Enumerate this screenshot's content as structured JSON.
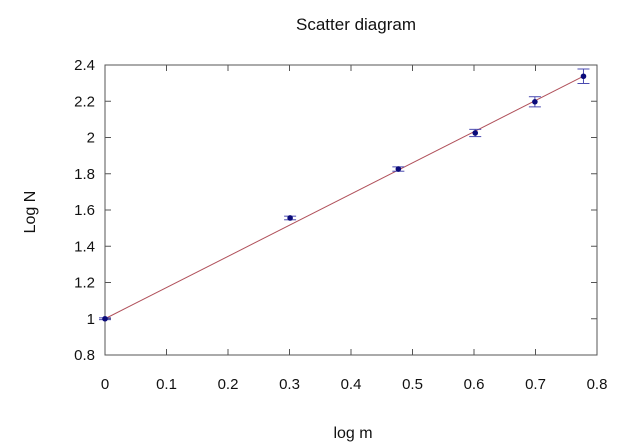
{
  "chart_data": {
    "type": "scatter",
    "title": "Scatter diagram",
    "xlabel": "log m",
    "ylabel": "Log N",
    "xlim": [
      0,
      0.8
    ],
    "ylim": [
      0.8,
      2.4
    ],
    "xticks": [
      0,
      0.1,
      0.2,
      0.3,
      0.4,
      0.5,
      0.6,
      0.7,
      0.8
    ],
    "yticks": [
      0.8,
      1,
      1.2,
      1.4,
      1.6,
      1.8,
      2,
      2.2,
      2.4
    ],
    "xtick_labels": [
      "0",
      "0.1",
      "0.2",
      "0.3",
      "0.4",
      "0.5",
      "0.6",
      "0.7",
      "0.8"
    ],
    "ytick_labels": [
      "0.8",
      "1",
      "1.2",
      "1.4",
      "1.6",
      "1.8",
      "2",
      "2.2",
      "2.4"
    ],
    "grid": false,
    "series": [
      {
        "x": [
          0,
          0.301,
          0.477,
          0.602,
          0.699,
          0.778
        ],
        "y": [
          1.0,
          1.556,
          1.826,
          2.025,
          2.197,
          2.338
        ],
        "yerr": [
          0.005,
          0.01,
          0.012,
          0.02,
          0.028,
          0.04
        ]
      }
    ],
    "fit_line": {
      "x": [
        0,
        0.778
      ],
      "y": [
        1.0,
        2.338
      ]
    },
    "colors": {
      "points": "#0b0b7a",
      "error_bars": "#4a4ab0",
      "fit_line": "#b0505a",
      "axes": "#555555"
    }
  }
}
